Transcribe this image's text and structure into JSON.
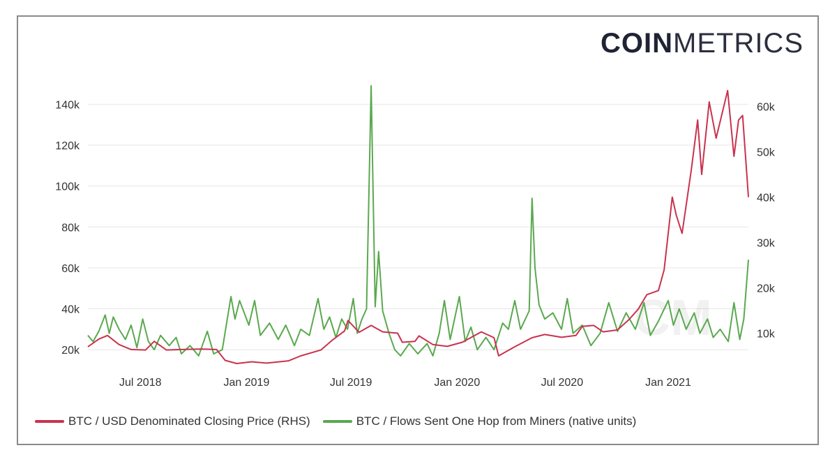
{
  "logo": {
    "part1": "COIN",
    "part2": "METRICS"
  },
  "colors": {
    "price": "#c8324e",
    "flows": "#5aa84f",
    "grid": "#e6e6e6",
    "text": "#333333"
  },
  "chart_data": {
    "type": "line",
    "x_ticks": [
      "Jul 2018",
      "Jan 2019",
      "Jul 2019",
      "Jan 2020",
      "Jul 2020",
      "Jan 2021"
    ],
    "left_axis": {
      "ticks": [
        "20k",
        "40k",
        "60k",
        "80k",
        "100k",
        "120k",
        "140k"
      ],
      "range": [
        17000,
        150000
      ]
    },
    "right_axis": {
      "ticks": [
        "10k",
        "20k",
        "30k",
        "40k",
        "50k",
        "60k"
      ],
      "range": [
        5000,
        65000
      ]
    },
    "x_range": [
      "2018-04-01",
      "2021-05-20"
    ],
    "series": [
      {
        "name": "BTC / USD Denominated Closing Price (RHS)",
        "axis": "right",
        "color": "#c8324e",
        "points": [
          [
            "2018-04-01",
            7000
          ],
          [
            "2018-04-20",
            8700
          ],
          [
            "2018-05-05",
            9500
          ],
          [
            "2018-05-25",
            7500
          ],
          [
            "2018-06-15",
            6400
          ],
          [
            "2018-07-10",
            6300
          ],
          [
            "2018-07-25",
            8200
          ],
          [
            "2018-08-15",
            6300
          ],
          [
            "2018-09-10",
            6400
          ],
          [
            "2018-10-15",
            6500
          ],
          [
            "2018-11-10",
            6400
          ],
          [
            "2018-11-25",
            4000
          ],
          [
            "2018-12-15",
            3300
          ],
          [
            "2019-01-10",
            3700
          ],
          [
            "2019-02-05",
            3400
          ],
          [
            "2019-03-15",
            3900
          ],
          [
            "2019-04-05",
            5000
          ],
          [
            "2019-05-10",
            6300
          ],
          [
            "2019-05-30",
            8500
          ],
          [
            "2019-06-20",
            10500
          ],
          [
            "2019-06-26",
            12800
          ],
          [
            "2019-07-15",
            10200
          ],
          [
            "2019-08-05",
            11700
          ],
          [
            "2019-08-25",
            10300
          ],
          [
            "2019-09-20",
            10000
          ],
          [
            "2019-09-28",
            8000
          ],
          [
            "2019-10-20",
            8200
          ],
          [
            "2019-10-27",
            9400
          ],
          [
            "2019-11-20",
            7500
          ],
          [
            "2019-12-15",
            7100
          ],
          [
            "2020-01-10",
            8000
          ],
          [
            "2020-02-12",
            10300
          ],
          [
            "2020-03-05",
            9000
          ],
          [
            "2020-03-13",
            5000
          ],
          [
            "2020-04-10",
            7000
          ],
          [
            "2020-05-10",
            9000
          ],
          [
            "2020-06-01",
            9700
          ],
          [
            "2020-06-30",
            9100
          ],
          [
            "2020-07-25",
            9500
          ],
          [
            "2020-08-05",
            11500
          ],
          [
            "2020-08-25",
            11700
          ],
          [
            "2020-09-10",
            10300
          ],
          [
            "2020-10-05",
            10700
          ],
          [
            "2020-10-25",
            13000
          ],
          [
            "2020-11-10",
            15300
          ],
          [
            "2020-11-25",
            18500
          ],
          [
            "2020-12-15",
            19400
          ],
          [
            "2020-12-25",
            24000
          ],
          [
            "2021-01-08",
            40000
          ],
          [
            "2021-01-15",
            36000
          ],
          [
            "2021-01-25",
            32000
          ],
          [
            "2021-02-10",
            46000
          ],
          [
            "2021-02-21",
            57000
          ],
          [
            "2021-02-28",
            45000
          ],
          [
            "2021-03-13",
            61000
          ],
          [
            "2021-03-25",
            53000
          ],
          [
            "2021-04-14",
            63500
          ],
          [
            "2021-04-25",
            49000
          ],
          [
            "2021-05-03",
            57000
          ],
          [
            "2021-05-10",
            58000
          ],
          [
            "2021-05-20",
            40000
          ]
        ]
      },
      {
        "name": "BTC / Flows Sent One Hop from Miners (native units)",
        "axis": "left",
        "color": "#5aa84f",
        "points": [
          [
            "2018-04-01",
            27000
          ],
          [
            "2018-04-10",
            24000
          ],
          [
            "2018-04-20",
            29000
          ],
          [
            "2018-05-01",
            37000
          ],
          [
            "2018-05-08",
            28000
          ],
          [
            "2018-05-15",
            36000
          ],
          [
            "2018-05-25",
            30000
          ],
          [
            "2018-06-05",
            25000
          ],
          [
            "2018-06-15",
            32000
          ],
          [
            "2018-06-25",
            21000
          ],
          [
            "2018-07-05",
            35000
          ],
          [
            "2018-07-15",
            24000
          ],
          [
            "2018-07-25",
            20000
          ],
          [
            "2018-08-05",
            27000
          ],
          [
            "2018-08-20",
            22000
          ],
          [
            "2018-09-01",
            26000
          ],
          [
            "2018-09-10",
            18000
          ],
          [
            "2018-09-25",
            22000
          ],
          [
            "2018-10-10",
            17000
          ],
          [
            "2018-10-25",
            29000
          ],
          [
            "2018-11-05",
            18000
          ],
          [
            "2018-11-20",
            20000
          ],
          [
            "2018-12-05",
            46000
          ],
          [
            "2018-12-12",
            35000
          ],
          [
            "2018-12-20",
            44000
          ],
          [
            "2019-01-05",
            32000
          ],
          [
            "2019-01-15",
            44000
          ],
          [
            "2019-01-25",
            27000
          ],
          [
            "2019-02-10",
            33000
          ],
          [
            "2019-02-25",
            25000
          ],
          [
            "2019-03-10",
            32000
          ],
          [
            "2019-03-25",
            22000
          ],
          [
            "2019-04-05",
            30000
          ],
          [
            "2019-04-20",
            27000
          ],
          [
            "2019-05-05",
            45000
          ],
          [
            "2019-05-15",
            30000
          ],
          [
            "2019-05-25",
            36000
          ],
          [
            "2019-06-05",
            26000
          ],
          [
            "2019-06-15",
            35000
          ],
          [
            "2019-06-25",
            30000
          ],
          [
            "2019-07-05",
            45000
          ],
          [
            "2019-07-12",
            28000
          ],
          [
            "2019-07-20",
            35000
          ],
          [
            "2019-07-28",
            40000
          ],
          [
            "2019-08-05",
            149000
          ],
          [
            "2019-08-12",
            41000
          ],
          [
            "2019-08-18",
            68000
          ],
          [
            "2019-08-25",
            39000
          ],
          [
            "2019-09-05",
            28000
          ],
          [
            "2019-09-15",
            20000
          ],
          [
            "2019-09-25",
            17000
          ],
          [
            "2019-10-10",
            23000
          ],
          [
            "2019-10-25",
            18000
          ],
          [
            "2019-11-10",
            23000
          ],
          [
            "2019-11-20",
            17000
          ],
          [
            "2019-12-01",
            28000
          ],
          [
            "2019-12-10",
            44000
          ],
          [
            "2019-12-20",
            25000
          ],
          [
            "2020-01-05",
            46000
          ],
          [
            "2020-01-15",
            24000
          ],
          [
            "2020-01-25",
            31000
          ],
          [
            "2020-02-05",
            20000
          ],
          [
            "2020-02-20",
            26000
          ],
          [
            "2020-03-05",
            20000
          ],
          [
            "2020-03-20",
            33000
          ],
          [
            "2020-03-30",
            30000
          ],
          [
            "2020-04-10",
            44000
          ],
          [
            "2020-04-20",
            30000
          ],
          [
            "2020-05-05",
            39000
          ],
          [
            "2020-05-10",
            94000
          ],
          [
            "2020-05-15",
            60000
          ],
          [
            "2020-05-22",
            42000
          ],
          [
            "2020-06-01",
            35000
          ],
          [
            "2020-06-15",
            38000
          ],
          [
            "2020-06-30",
            30000
          ],
          [
            "2020-07-10",
            45000
          ],
          [
            "2020-07-20",
            28000
          ],
          [
            "2020-08-05",
            32000
          ],
          [
            "2020-08-20",
            22000
          ],
          [
            "2020-09-05",
            28000
          ],
          [
            "2020-09-20",
            43000
          ],
          [
            "2020-10-05",
            29000
          ],
          [
            "2020-10-20",
            38000
          ],
          [
            "2020-11-05",
            30000
          ],
          [
            "2020-11-20",
            43000
          ],
          [
            "2020-12-01",
            27000
          ],
          [
            "2020-12-15",
            34000
          ],
          [
            "2021-01-01",
            44000
          ],
          [
            "2021-01-10",
            32000
          ],
          [
            "2021-01-20",
            40000
          ],
          [
            "2021-02-01",
            30000
          ],
          [
            "2021-02-15",
            38000
          ],
          [
            "2021-02-25",
            28000
          ],
          [
            "2021-03-10",
            35000
          ],
          [
            "2021-03-20",
            26000
          ],
          [
            "2021-04-01",
            30000
          ],
          [
            "2021-04-15",
            24000
          ],
          [
            "2021-04-25",
            43000
          ],
          [
            "2021-05-05",
            25000
          ],
          [
            "2021-05-12",
            35000
          ],
          [
            "2021-05-20",
            64000
          ]
        ]
      }
    ]
  }
}
